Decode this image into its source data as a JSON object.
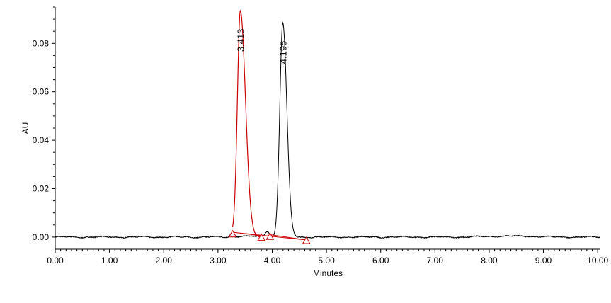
{
  "chart_data": {
    "type": "line",
    "title": "",
    "xlabel": "Minutes",
    "ylabel": "AU",
    "xlim": [
      0.0,
      10.05
    ],
    "ylim": [
      -0.005,
      0.095
    ],
    "grid": false,
    "legend": "none",
    "x_ticks": [
      "0.00",
      "1.00",
      "2.00",
      "3.00",
      "4.00",
      "5.00",
      "6.00",
      "7.00",
      "8.00",
      "9.00",
      "10.00"
    ],
    "y_ticks": [
      "0.00",
      "0.02",
      "0.04",
      "0.06",
      "0.08"
    ],
    "colors": {
      "trace": "#000000",
      "integration": "#cc0000",
      "axis": "#000000"
    },
    "peaks": [
      {
        "label": "3.413",
        "rt": 3.413,
        "height": 0.0935,
        "sigma_left": 0.055,
        "sigma_right": 0.095,
        "color": "#cc0000"
      },
      {
        "label": "4.195",
        "rt": 4.195,
        "height": 0.0885,
        "sigma_left": 0.055,
        "sigma_right": 0.075,
        "color": "#000000"
      }
    ],
    "minor_peaks": [
      {
        "rt": 3.26,
        "height": 0.0018,
        "sigma": 0.03
      },
      {
        "rt": 3.91,
        "height": 0.0025,
        "sigma": 0.04
      }
    ],
    "baselines": [
      {
        "points": [
          [
            3.27,
            0.002
          ],
          [
            3.8,
            0.0005
          ]
        ]
      },
      {
        "points": [
          [
            3.96,
            0.001
          ],
          [
            4.63,
            -0.0012
          ]
        ]
      },
      {
        "points": [
          [
            3.27,
            0.002
          ],
          [
            4.63,
            -0.0012
          ]
        ]
      }
    ],
    "markers": [
      {
        "x": 3.27,
        "y": 0.0012
      },
      {
        "x": 3.8,
        "y": -0.0002
      },
      {
        "x": 3.96,
        "y": 0.0002
      },
      {
        "x": 4.63,
        "y": -0.0015
      }
    ]
  }
}
